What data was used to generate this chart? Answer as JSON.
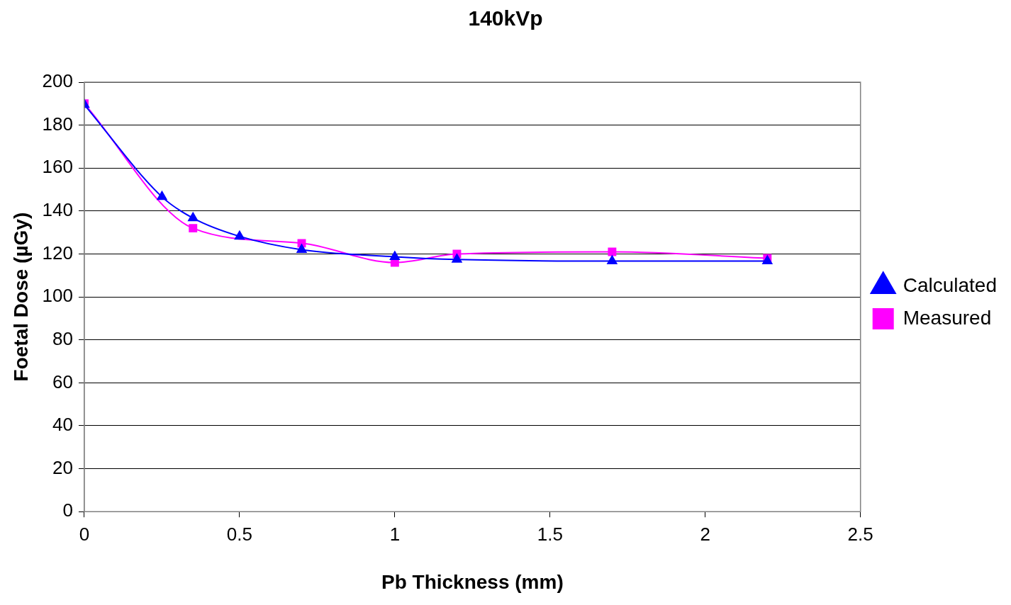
{
  "chart_data": {
    "type": "line",
    "title": "140kVp",
    "xlabel": "Pb Thickness (mm)",
    "ylabel": "Foetal Dose (µGy)",
    "xlim": [
      0,
      2.5
    ],
    "xticks": [
      0,
      0.5,
      1,
      1.5,
      2,
      2.5
    ],
    "ylim": [
      0,
      200
    ],
    "yticks": [
      0,
      20,
      40,
      60,
      80,
      100,
      120,
      140,
      160,
      180,
      200
    ],
    "grid": "y",
    "legend": "right",
    "series": [
      {
        "name": "Measured",
        "color": "#ff00ff",
        "marker": "square",
        "x": [
          0,
          0.35,
          0.7,
          1.0,
          1.2,
          1.7,
          2.2
        ],
        "values": [
          190,
          132,
          125,
          116,
          120,
          121,
          118
        ]
      },
      {
        "name": "Calculated",
        "color": "#0000ff",
        "marker": "triangle",
        "x": [
          0,
          0.25,
          0.35,
          0.5,
          0.7,
          1.0,
          1.2,
          1.7,
          2.2
        ],
        "values": [
          189.5,
          146.6,
          136.7,
          128.2,
          122,
          118.7,
          117.4,
          116.7,
          116.7
        ]
      }
    ]
  }
}
